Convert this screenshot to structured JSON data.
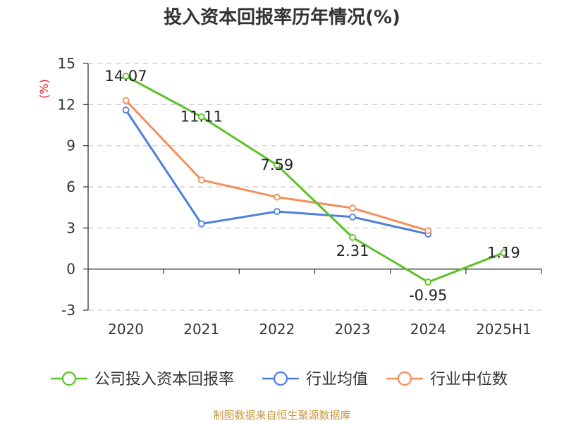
{
  "title": "投入资本回报率历年情况(%)",
  "source": "制图数据来自恒生聚源数据库",
  "chart_data": {
    "type": "line",
    "title": "投入资本回报率历年情况(%)",
    "ylabel": "(%)",
    "xlabel": "",
    "categories": [
      "2020",
      "2021",
      "2022",
      "2023",
      "2024",
      "2025H1"
    ],
    "ylim": [
      -3,
      15
    ],
    "yticks": [
      "15",
      "12",
      "9",
      "6",
      "3",
      "0",
      "-3"
    ],
    "grid": true,
    "legend": "bottom",
    "series": [
      {
        "name": "公司投入资本回报率",
        "color": "#5cc127",
        "values": [
          14.07,
          11.11,
          7.59,
          2.31,
          -0.95,
          1.19
        ],
        "labels": [
          "14.07",
          "11.11",
          "7.59",
          "2.31",
          "-0.95",
          "1.19"
        ]
      },
      {
        "name": "行业均值",
        "color": "#4e7fdb",
        "values": [
          11.6,
          3.3,
          4.2,
          3.8,
          2.55,
          null
        ]
      },
      {
        "name": "行业中位数",
        "color": "#f28f5b",
        "values": [
          12.3,
          6.5,
          5.25,
          4.45,
          2.8,
          null
        ]
      }
    ]
  }
}
